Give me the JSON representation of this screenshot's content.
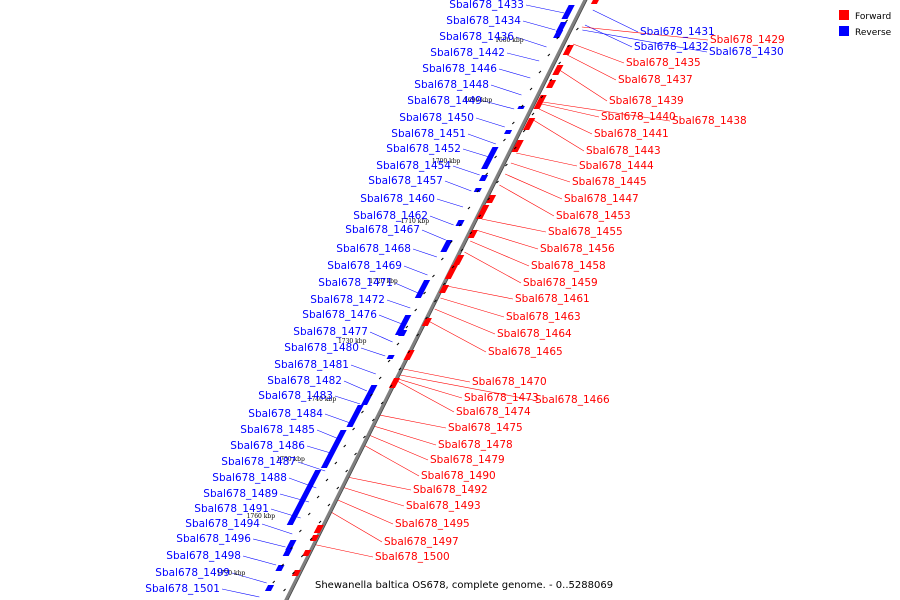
{
  "caption": "Shewanella baltica OS678, complete genome. - 0..5288069",
  "legend": {
    "forward": {
      "label": "Forward",
      "color": "#ff0000"
    },
    "reverse": {
      "label": "Reverse",
      "color": "#0000ff"
    }
  },
  "ticks": [
    "1680 kbp",
    "1690 kbp",
    "1700 kbp",
    "1710 kbp",
    "1720 kbp",
    "1730 kbp",
    "1740 kbp",
    "1750 kbp",
    "1760 kbp",
    "1770 kbp"
  ],
  "reverse_genes": [
    "Sbal678_1433",
    "Sbal678_1434",
    "Sbal678_1436",
    "Sbal678_1442",
    "Sbal678_1446",
    "Sbal678_1448",
    "Sbal678_1449",
    "Sbal678_1450",
    "Sbal678_1451",
    "Sbal678_1452",
    "Sbal678_1454",
    "Sbal678_1457",
    "Sbal678_1460",
    "Sbal678_1462",
    "Sbal678_1467",
    "Sbal678_1468",
    "Sbal678_1469",
    "Sbal678_1471",
    "Sbal678_1472",
    "Sbal678_1476",
    "Sbal678_1477",
    "Sbal678_1480",
    "Sbal678_1481",
    "Sbal678_1482",
    "Sbal678_1483",
    "Sbal678_1484",
    "Sbal678_1485",
    "Sbal678_1486",
    "Sbal678_1487",
    "Sbal678_1488",
    "Sbal678_1489",
    "Sbal678_1491",
    "Sbal678_1494",
    "Sbal678_1496",
    "Sbal678_1498",
    "Sbal678_1499",
    "Sbal678_1501"
  ],
  "reverse_genes_right": [
    "Sbal678_1431",
    "Sbal678_1432",
    "Sbal678_1430"
  ],
  "forward_genes": [
    "Sbal678_1429",
    "Sbal678_1435",
    "Sbal678_1437",
    "Sbal678_1439",
    "Sbal678_1440",
    "Sbal678_1438",
    "Sbal678_1441",
    "Sbal678_1443",
    "Sbal678_1444",
    "Sbal678_1445",
    "Sbal678_1447",
    "Sbal678_1453",
    "Sbal678_1455",
    "Sbal678_1456",
    "Sbal678_1458",
    "Sbal678_1459",
    "Sbal678_1461",
    "Sbal678_1463",
    "Sbal678_1464",
    "Sbal678_1465",
    "Sbal678_1470",
    "Sbal678_1473",
    "Sbal678_1466",
    "Sbal678_1474",
    "Sbal678_1475",
    "Sbal678_1478",
    "Sbal678_1479",
    "Sbal678_1490",
    "Sbal678_1492",
    "Sbal678_1493",
    "Sbal678_1495",
    "Sbal678_1497",
    "Sbal678_1500"
  ]
}
